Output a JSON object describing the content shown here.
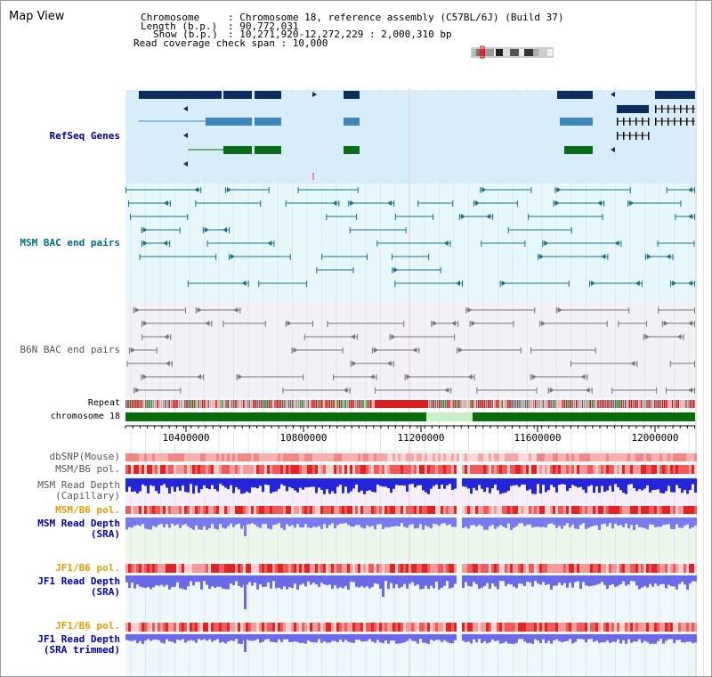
{
  "title": "Map View",
  "header": {
    "chromosome_key": "Chromosome",
    "chromosome_val": ": Chromosome 18, reference assembly (C57BL/6J) (Build 37)",
    "length_key": "Length (b.p.)",
    "length_val": ": 90,772,031",
    "show_key": "Show (b.p.)",
    "show_val": ": 10,271,920-12,272,229 : 2,000,310 bp",
    "coverage_line": "Read coverage check span : 10,000"
  },
  "tracks": {
    "refseq": "RefSeq Genes",
    "msm_bac": "MSM BAC end pairs",
    "b6n_bac": "B6N BAC end pairs",
    "repeat": "Repeat",
    "chromosome": "chromosome 18",
    "dbsnp": "dbSNP(Mouse)",
    "msm_b6_pol": "MSM/B6 pol.",
    "msm_depth_cap_1": "MSM Read Depth",
    "msm_depth_cap_2": "(Capillary)",
    "msm_b6_pol_2": "MSM/B6 pol.",
    "msm_depth_sra_1": "MSM Read Depth",
    "msm_depth_sra_2": "(SRA)",
    "jf1_b6_pol": "JF1/B6 pol.",
    "jf1_depth_sra_1": "JF1 Read Depth",
    "jf1_depth_sra_2": "(SRA)",
    "jf1_b6_pol_2": "JF1/B6 pol.",
    "jf1_depth_trim_1": "JF1 Read Depth",
    "jf1_depth_trim_2": "(SRA trimmed)"
  },
  "axis_ticks": [
    "10400000",
    "10800000",
    "11200000",
    "11600000",
    "12000000"
  ],
  "colors": {
    "gene_dark": "#0c2d5e",
    "gene_mid": "#3f86b8",
    "gene_green": "#0a6b1a",
    "chrom_green": "#0a6b0a",
    "chrom_gap": "#c8f0c8",
    "depth_blue": "#2b2be0",
    "pol_red": "#e83030"
  }
}
